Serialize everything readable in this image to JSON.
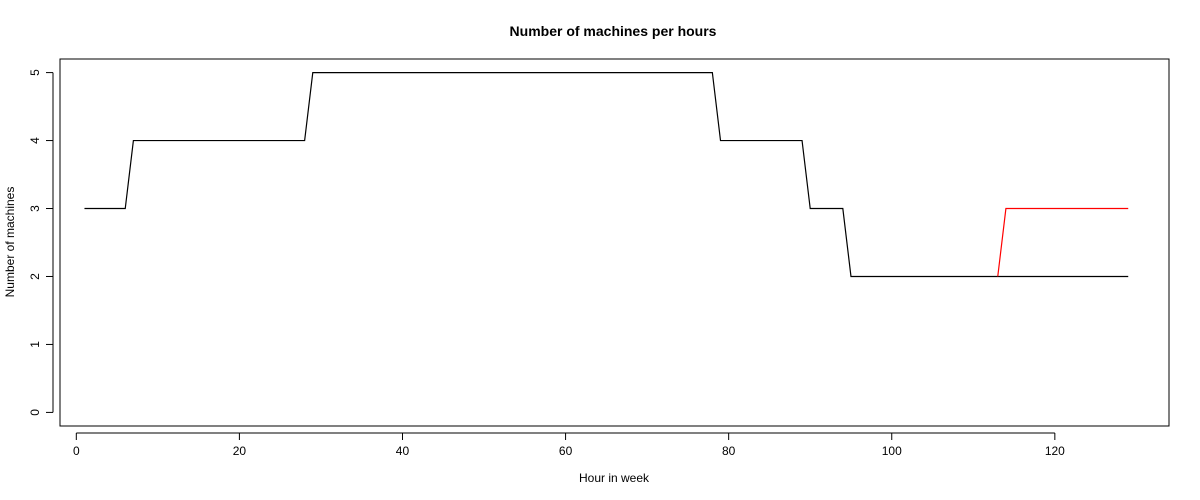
{
  "chart_data": {
    "type": "line",
    "title": "Number of machines per hours",
    "xlabel": "Hour in week",
    "ylabel": "Number of machines",
    "xlim": [
      -2,
      134
    ],
    "ylim": [
      -0.2,
      5.2
    ],
    "xticks": [
      0,
      20,
      40,
      60,
      80,
      100,
      120
    ],
    "yticks": [
      0,
      1,
      2,
      3,
      4,
      5
    ],
    "grid": false,
    "legend": "none",
    "series": [
      {
        "color": "#000000",
        "x": [
          1,
          6,
          7,
          28,
          29,
          78,
          79,
          89,
          90,
          94,
          95,
          129
        ],
        "y": [
          3,
          3,
          4,
          4,
          5,
          5,
          4,
          4,
          3,
          3,
          2,
          2
        ]
      },
      {
        "color": "#ff0000",
        "x": [
          113,
          114,
          129
        ],
        "y": [
          2,
          3,
          3
        ]
      }
    ]
  }
}
